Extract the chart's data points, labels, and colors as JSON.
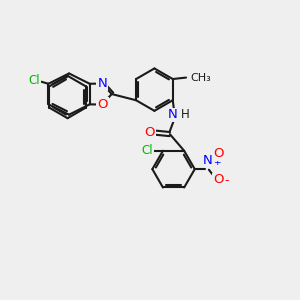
{
  "bg_color": "#efefef",
  "bond_color": "#1a1a1a",
  "bond_width": 1.5,
  "atom_colors": {
    "Cl": "#00bb00",
    "N": "#0000ff",
    "O": "#ff0000",
    "C": "#1a1a1a",
    "H": "#1a1a1a"
  },
  "font_size": 8.5,
  "fig_size": [
    3.0,
    3.0
  ],
  "dpi": 100,
  "xlim": [
    0,
    10
  ],
  "ylim": [
    0,
    10
  ]
}
